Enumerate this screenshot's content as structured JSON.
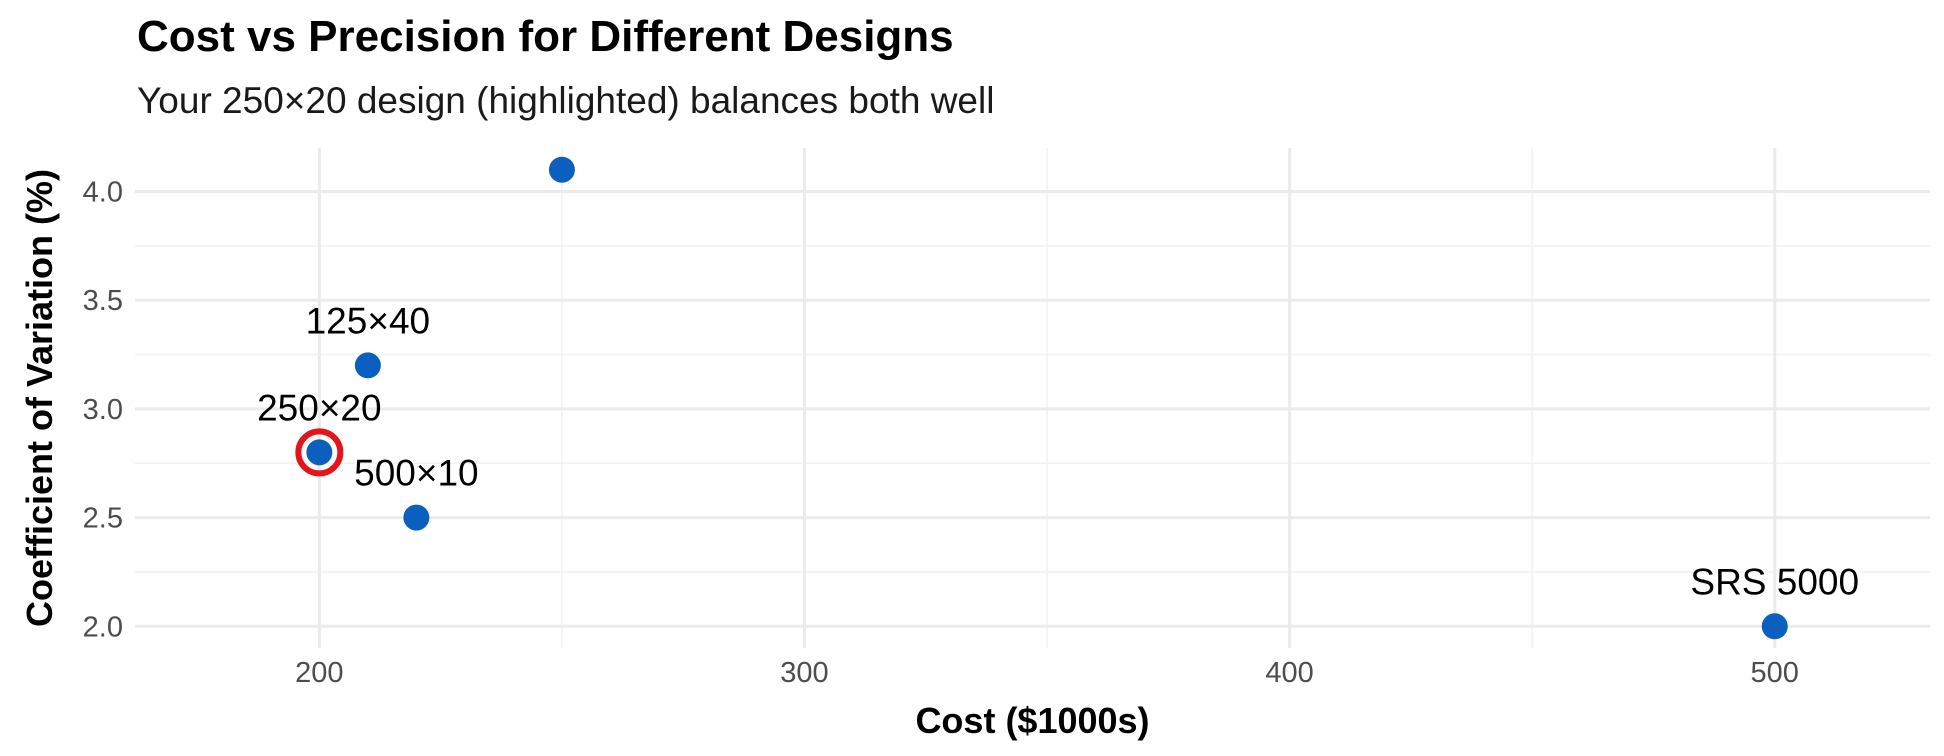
{
  "chart_data": {
    "type": "scatter",
    "title": "Cost vs Precision for Different Designs",
    "subtitle": "Your 250×20 design (highlighted) balances both well",
    "xlabel": "Cost ($1000s)",
    "ylabel": "Coefficient of Variation (%)",
    "xlim": [
      162,
      532
    ],
    "ylim": [
      1.9,
      4.2
    ],
    "x_ticks": [
      200,
      300,
      400,
      500
    ],
    "x_tick_labels": [
      "200",
      "300",
      "400",
      "500"
    ],
    "y_ticks": [
      2.0,
      2.5,
      3.0,
      3.5,
      4.0
    ],
    "y_tick_labels": [
      "2.0",
      "2.5",
      "3.0",
      "3.5",
      "4.0"
    ],
    "point_color": "#0a5fbf",
    "highlight_color": "#e3141b",
    "points": [
      {
        "label": "250×20",
        "x": 200,
        "y": 2.8,
        "highlighted": true,
        "label_pos": "above"
      },
      {
        "label": "125×40",
        "x": 210,
        "y": 3.2,
        "highlighted": false,
        "label_pos": "above"
      },
      {
        "label": "500×10",
        "x": 220,
        "y": 2.5,
        "highlighted": false,
        "label_pos": "above"
      },
      {
        "label": "",
        "x": 250,
        "y": 4.1,
        "highlighted": false,
        "label_pos": "none"
      },
      {
        "label": "SRS 5000",
        "x": 500,
        "y": 2.0,
        "highlighted": false,
        "label_pos": "above"
      }
    ]
  }
}
